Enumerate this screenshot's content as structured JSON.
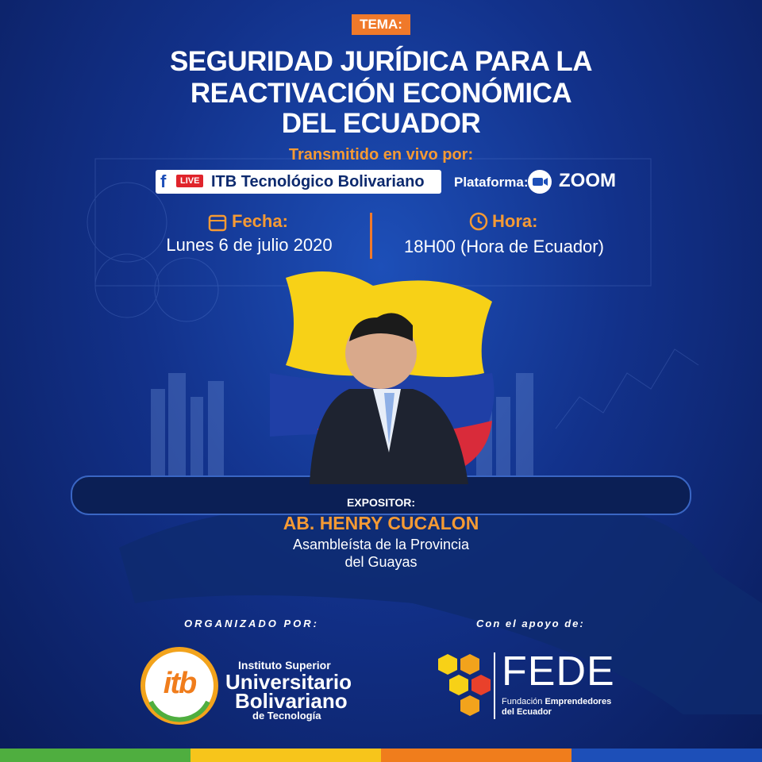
{
  "header": {
    "tag": "TEMA:",
    "title_lines": [
      "SEGURIDAD JURÍDICA PARA LA",
      "REACTIVACIÓN ECONÓMICA",
      "DEL ECUADOR"
    ]
  },
  "broadcast": {
    "label": "Transmitido en vivo por:",
    "live": "LIVE",
    "channel": "ITB Tecnológico Bolivariano",
    "platform_label": "Plataforma:",
    "platform": "zoom"
  },
  "schedule": {
    "date_label": "Fecha:",
    "date": "Lunes 6 de julio 2020",
    "time_label": "Hora:",
    "time": "18H00 (Hora de Ecuador)"
  },
  "speaker": {
    "label": "EXPOSITOR:",
    "name": "AB. HENRY CUCALON",
    "role_lines": [
      "Asambleísta de la Provincia",
      "del Guayas"
    ]
  },
  "organizer": {
    "label": "ORGANIZADO POR:",
    "logo_mark": "itb",
    "lines": [
      "Instituto Superior",
      "Universitario",
      "Bolivariano",
      "de Tecnología"
    ]
  },
  "support": {
    "label": "Con el apoyo de:",
    "logo_name": "FEDE",
    "lines": [
      "Fundación",
      "Emprendedores",
      "del Ecuador"
    ]
  }
}
